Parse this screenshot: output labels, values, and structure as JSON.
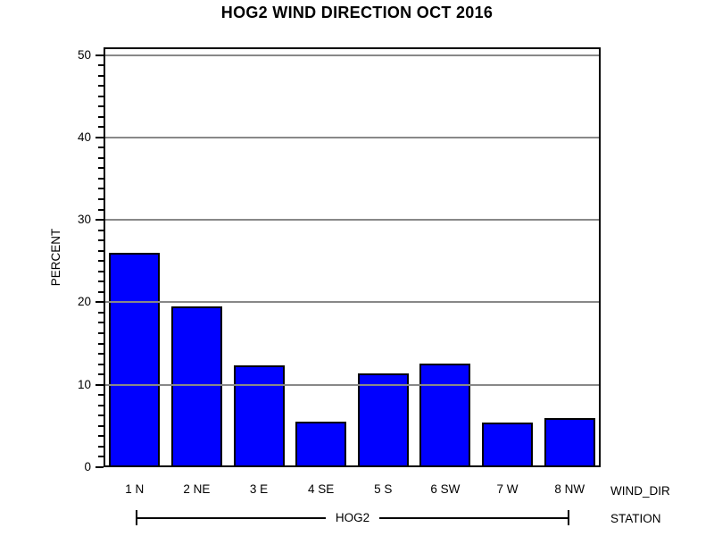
{
  "chart_data": {
    "type": "bar",
    "title": "HOG2 WIND DIRECTION OCT 2016",
    "categories": [
      "1 N",
      "2 NE",
      "3 E",
      "4 SE",
      "5 S",
      "6 SW",
      "7 W",
      "8 NW"
    ],
    "values": [
      26.0,
      19.5,
      12.4,
      5.5,
      11.4,
      12.6,
      5.4,
      6.0
    ],
    "xlabel": "WIND_DIR",
    "ylabel": "PERCENT",
    "ylim": [
      0,
      50
    ],
    "y_major_ticks": [
      0,
      10,
      20,
      30,
      40,
      50
    ],
    "y_minor_ticks_per_interval": 7,
    "grid": "horizontal-major-over-bars",
    "legend": "none",
    "bar_color": "#0000FF",
    "bar_border_color": "#000000",
    "gridline_color": "#888888",
    "axis_color": "#000000",
    "background_color": "#FFFFFF",
    "group": {
      "label": "HOG2",
      "axis_label": "STATION"
    }
  }
}
